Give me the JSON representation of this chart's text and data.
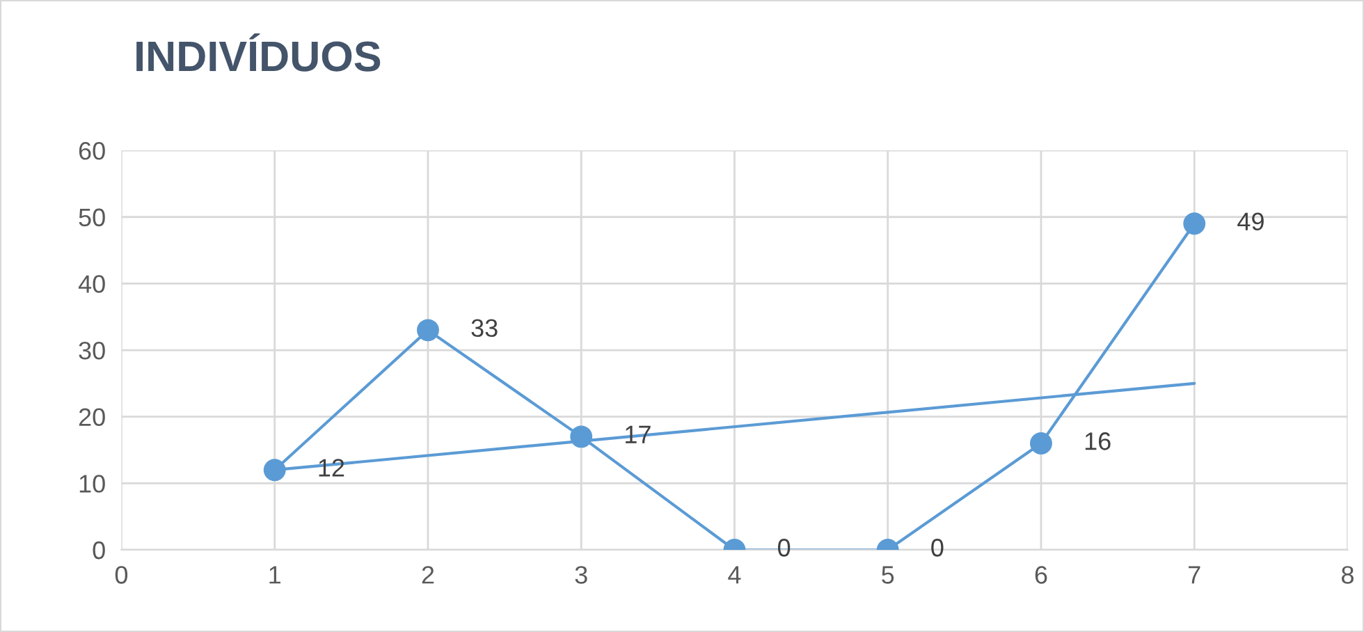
{
  "chart_data": {
    "type": "line",
    "title": "INDIVÍDUOS",
    "x": [
      1,
      2,
      3,
      4,
      5,
      6,
      7
    ],
    "series": [
      {
        "color": "#5b9bd5",
        "values": [
          12,
          33,
          17,
          0,
          0,
          16,
          49
        ],
        "marker": "circle"
      },
      {
        "type": "line",
        "color": "#5b9bd5",
        "x": [
          1,
          7
        ],
        "values": [
          12,
          25
        ],
        "marker": "none",
        "data_labels": false
      }
    ],
    "xlim": [
      0,
      8
    ],
    "xticks": [
      0,
      1,
      2,
      3,
      4,
      5,
      6,
      7,
      8
    ],
    "ylim": [
      0,
      60
    ],
    "yticks": [
      0,
      10,
      20,
      30,
      40,
      50,
      60
    ],
    "grid": true,
    "data_labels": true,
    "line_style": "solid"
  }
}
